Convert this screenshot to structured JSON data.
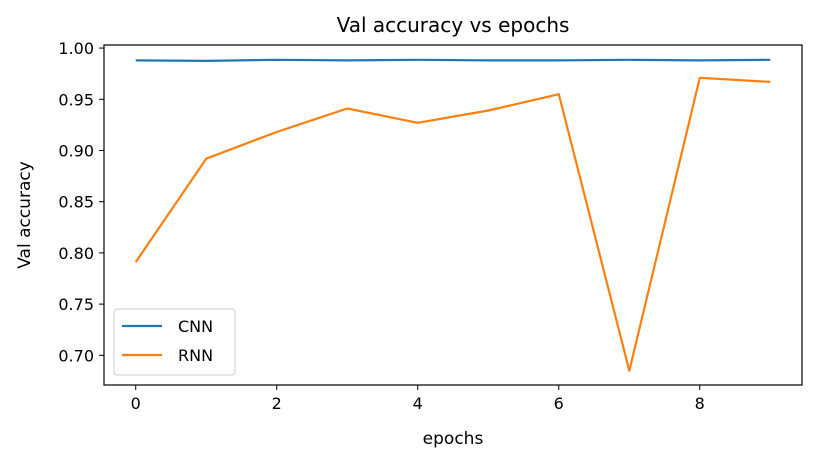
{
  "chart_data": {
    "type": "line",
    "title": "Val accuracy vs epochs",
    "xlabel": "epochs",
    "ylabel": "Val accuracy",
    "x": [
      0,
      1,
      2,
      3,
      4,
      5,
      6,
      7,
      8,
      9
    ],
    "xlim": [
      -0.45,
      9.45
    ],
    "ylim": [
      0.671,
      1.003
    ],
    "xticks": [
      0,
      2,
      4,
      6,
      8
    ],
    "xtick_labels": [
      "0",
      "2",
      "4",
      "6",
      "8"
    ],
    "yticks": [
      0.7,
      0.75,
      0.8,
      0.85,
      0.9,
      0.95,
      1.0
    ],
    "ytick_labels": [
      "0.70",
      "0.75",
      "0.80",
      "0.85",
      "0.90",
      "0.95",
      "1.00"
    ],
    "grid": false,
    "legend_position": "lower-left",
    "series": [
      {
        "name": "CNN",
        "color": "#1f77b4",
        "values": [
          0.988,
          0.9875,
          0.9885,
          0.988,
          0.9885,
          0.988,
          0.988,
          0.9885,
          0.988,
          0.9885
        ]
      },
      {
        "name": "RNN",
        "color": "#ff7f0e",
        "values": [
          0.791,
          0.892,
          0.918,
          0.941,
          0.927,
          0.939,
          0.955,
          0.685,
          0.971,
          0.967
        ]
      }
    ]
  }
}
